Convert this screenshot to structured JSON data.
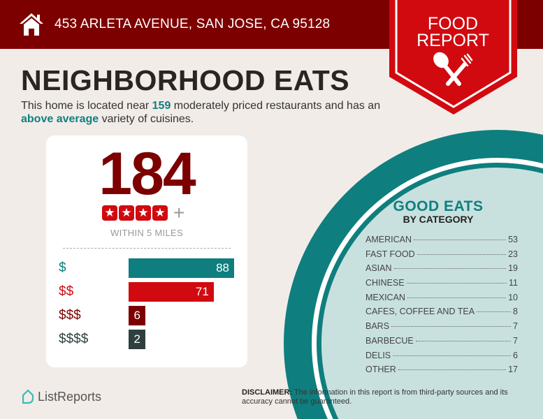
{
  "header": {
    "address": "453 ARLETA AVENUE, SAN JOSE, CA 95128",
    "icon": "home-icon"
  },
  "badge": {
    "line1": "FOOD",
    "line2": "REPORT",
    "icon": "fork-spoon-icon"
  },
  "title": "NEIGHBORHOOD EATS",
  "intro": {
    "part1": "This home is located near ",
    "count": "159",
    "part2": " moderately priced restaurants and has an ",
    "variety": "above average",
    "part3": " variety of cuisines."
  },
  "summary": {
    "total": "184",
    "stars": 4,
    "plus": "+",
    "within": "WITHIN 5 MILES"
  },
  "price_levels": [
    {
      "label": "$",
      "value": 88,
      "color": "#0f7e7e"
    },
    {
      "label": "$$",
      "value": 71,
      "color": "#d10a0f"
    },
    {
      "label": "$$$",
      "value": 6,
      "color": "#7d0000"
    },
    {
      "label": "$$$$",
      "value": 2,
      "color": "#2f3f3f"
    }
  ],
  "good_eats": {
    "title": "GOOD EATS",
    "subtitle": "BY CATEGORY",
    "categories": [
      {
        "name": "AMERICAN",
        "count": "53"
      },
      {
        "name": "FAST FOOD",
        "count": "23"
      },
      {
        "name": "ASIAN",
        "count": "19"
      },
      {
        "name": "CHINESE",
        "count": "11"
      },
      {
        "name": "MEXICAN",
        "count": "10"
      },
      {
        "name": "CAFES, COFFEE AND TEA",
        "count": "8"
      },
      {
        "name": "BARS",
        "count": "7"
      },
      {
        "name": "BARBECUE",
        "count": "7"
      },
      {
        "name": "DELIS",
        "count": "6"
      },
      {
        "name": "OTHER",
        "count": "17"
      }
    ]
  },
  "footer": {
    "logo": "ListReports",
    "disclaimer_label": "DISCLAIMER:",
    "disclaimer": " The information in this report is from third-party sources and its accuracy cannot be guaranteed."
  },
  "colors": {
    "dark_red": "#7d0000",
    "red": "#d10a0f",
    "teal": "#0f7e7e",
    "light_teal": "#c8e1df"
  }
}
